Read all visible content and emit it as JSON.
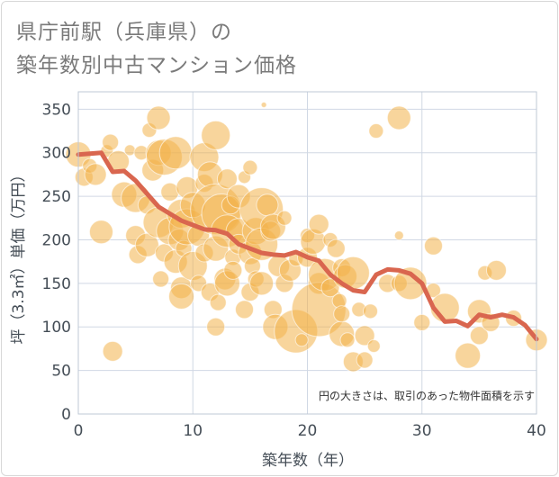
{
  "chart_data": {
    "type": "scatter",
    "title_line1": "県庁前駅（兵庫県）の",
    "title_line2": "築年数別中古マンション価格",
    "xlabel": "築年数（年）",
    "ylabel": "坪（3.3㎡）単価（万円）",
    "xlim": [
      0,
      40
    ],
    "ylim": [
      0,
      370
    ],
    "x_ticks": [
      0,
      10,
      20,
      30,
      40
    ],
    "y_ticks": [
      0,
      50,
      100,
      150,
      200,
      250,
      300,
      350
    ],
    "grid": true,
    "annotation": "円の大きさは、取引のあった物件面積を示す",
    "colors": {
      "bubble": "#f2b24a",
      "line": "#d9664f",
      "grid": "#d0d8e4"
    },
    "series": [
      {
        "type": "line",
        "x": [
          0,
          1,
          2,
          3,
          4,
          5,
          6,
          7,
          8,
          9,
          10,
          11,
          12,
          13,
          14,
          15,
          16,
          17,
          18,
          19,
          20,
          21,
          22,
          23,
          24,
          25,
          26,
          27,
          28,
          29,
          30,
          31,
          32,
          33,
          34,
          35,
          36,
          37,
          38,
          39,
          40
        ],
        "values": [
          298,
          299,
          300,
          278,
          279,
          268,
          253,
          238,
          230,
          222,
          217,
          212,
          211,
          207,
          195,
          190,
          185,
          183,
          182,
          186,
          180,
          176,
          160,
          150,
          142,
          140,
          160,
          166,
          165,
          161,
          150,
          122,
          106,
          107,
          101,
          114,
          111,
          114,
          111,
          102,
          86
        ]
      },
      {
        "type": "bubble",
        "points": [
          [
            0,
            298,
            14
          ],
          [
            0.5,
            272,
            10
          ],
          [
            1,
            285,
            8
          ],
          [
            1.5,
            275,
            12
          ],
          [
            2,
            209,
            13
          ],
          [
            2.5,
            302,
            7
          ],
          [
            2.8,
            312,
            9
          ],
          [
            3,
            72,
            11
          ],
          [
            3.5,
            290,
            12
          ],
          [
            4,
            252,
            14
          ],
          [
            4.5,
            303,
            6
          ],
          [
            5,
            248,
            16
          ],
          [
            5,
            205,
            11
          ],
          [
            5.2,
            183,
            10
          ],
          [
            5.5,
            300,
            8
          ],
          [
            6,
            194,
            13
          ],
          [
            6,
            240,
            10
          ],
          [
            6.2,
            326,
            8
          ],
          [
            6.5,
            280,
            12
          ],
          [
            7,
            340,
            13
          ],
          [
            7,
            300,
            14
          ],
          [
            7,
            220,
            17
          ],
          [
            7.2,
            155,
            9
          ],
          [
            7.5,
            185,
            10
          ],
          [
            7.5,
            295,
            20
          ],
          [
            8,
            210,
            15
          ],
          [
            8,
            255,
            10
          ],
          [
            8.5,
            300,
            18
          ],
          [
            8.5,
            175,
            13
          ],
          [
            8.8,
            200,
            12
          ],
          [
            9,
            145,
            12
          ],
          [
            9,
            230,
            16
          ],
          [
            9,
            135,
            14
          ],
          [
            9.2,
            190,
            9
          ],
          [
            9.5,
            260,
            12
          ],
          [
            9.5,
            215,
            20
          ],
          [
            10,
            170,
            16
          ],
          [
            10,
            240,
            14
          ],
          [
            10.5,
            205,
            12
          ],
          [
            10.5,
            150,
            9
          ],
          [
            11,
            295,
            16
          ],
          [
            11,
            265,
            10
          ],
          [
            11,
            185,
            10
          ],
          [
            11.5,
            275,
            14
          ],
          [
            11.5,
            140,
            10
          ],
          [
            12,
            320,
            16
          ],
          [
            12,
            235,
            28
          ],
          [
            12,
            190,
            14
          ],
          [
            12,
            100,
            10
          ],
          [
            12.2,
            128,
            9
          ],
          [
            12.5,
            230,
            22
          ],
          [
            12.8,
            155,
            12
          ],
          [
            13,
            270,
            11
          ],
          [
            13,
            210,
            18
          ],
          [
            13,
            150,
            14
          ],
          [
            13.3,
            240,
            10
          ],
          [
            13.5,
            180,
            9
          ],
          [
            13.5,
            165,
            10
          ],
          [
            14,
            210,
            14
          ],
          [
            14,
            195,
            11
          ],
          [
            14,
            250,
            13
          ],
          [
            14.5,
            272,
            7
          ],
          [
            14.5,
            120,
            10
          ],
          [
            15,
            283,
            8
          ],
          [
            15,
            185,
            13
          ],
          [
            15,
            140,
            10
          ],
          [
            15.2,
            170,
            9
          ],
          [
            15.5,
            155,
            9
          ],
          [
            15.5,
            210,
            15
          ],
          [
            16,
            235,
            24
          ],
          [
            16,
            195,
            18
          ],
          [
            16,
            150,
            13
          ],
          [
            16.2,
            355,
            3
          ],
          [
            16.5,
            240,
            12
          ],
          [
            16.8,
            210,
            11
          ],
          [
            17,
            215,
            14
          ],
          [
            17,
            120,
            10
          ],
          [
            17.2,
            100,
            14
          ],
          [
            17.5,
            170,
            12
          ],
          [
            18,
            225,
            8
          ],
          [
            18,
            150,
            10
          ],
          [
            18.5,
            165,
            12
          ],
          [
            19,
            95,
            24
          ],
          [
            19,
            178,
            8
          ],
          [
            19.5,
            85,
            7
          ],
          [
            20,
            180,
            11
          ],
          [
            20,
            205,
            8
          ],
          [
            20.5,
            198,
            14
          ],
          [
            21,
            218,
            11
          ],
          [
            21,
            150,
            12
          ],
          [
            21,
            120,
            30
          ],
          [
            21.5,
            160,
            18
          ],
          [
            22,
            200,
            8
          ],
          [
            22,
            145,
            10
          ],
          [
            22.5,
            190,
            10
          ],
          [
            22.8,
            130,
            8
          ],
          [
            23,
            168,
            10
          ],
          [
            23,
            92,
            14
          ],
          [
            23,
            115,
            9
          ],
          [
            23.3,
            158,
            13
          ],
          [
            23.5,
            85,
            8
          ],
          [
            24,
            162,
            18
          ],
          [
            24,
            60,
            11
          ],
          [
            24.5,
            120,
            8
          ],
          [
            25,
            90,
            11
          ],
          [
            25,
            62,
            9
          ],
          [
            25.5,
            118,
            8
          ],
          [
            25.8,
            78,
            7
          ],
          [
            26,
            325,
            8
          ],
          [
            27,
            150,
            10
          ],
          [
            28,
            340,
            13
          ],
          [
            28,
            205,
            5
          ],
          [
            28,
            150,
            9
          ],
          [
            29,
            150,
            18
          ],
          [
            30,
            105,
            9
          ],
          [
            31,
            193,
            10
          ],
          [
            31,
            142,
            8
          ],
          [
            32,
            122,
            16
          ],
          [
            34,
            67,
            14
          ],
          [
            35,
            118,
            13
          ],
          [
            35,
            90,
            10
          ],
          [
            35.5,
            162,
            8
          ],
          [
            36,
            105,
            10
          ],
          [
            36.5,
            165,
            11
          ],
          [
            38,
            110,
            9
          ],
          [
            40,
            85,
            12
          ]
        ]
      }
    ]
  }
}
